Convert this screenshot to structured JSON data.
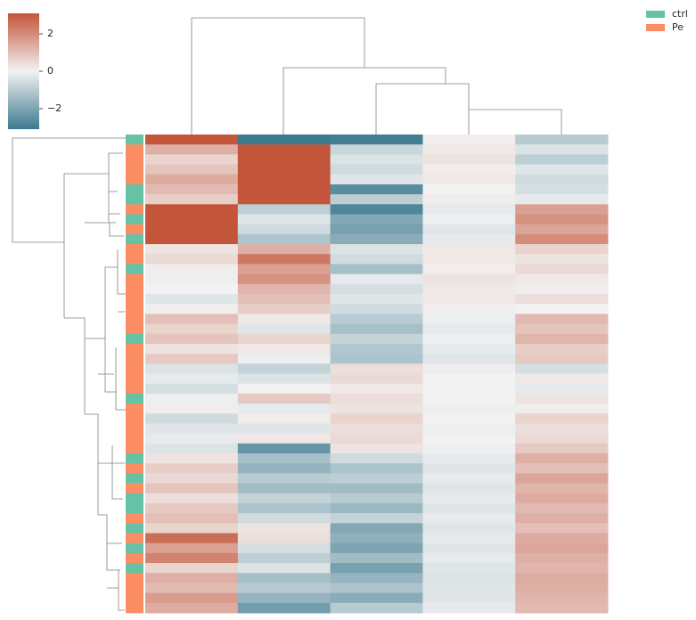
{
  "chart_data": {
    "type": "heatmap",
    "colormap": [
      "#3d7a8f",
      "#f2f2f2",
      "#c3553a"
    ],
    "clim": [
      -3.1,
      3.1
    ],
    "colorbar_ticks": [
      {
        "value": -2,
        "label": "−2"
      },
      0,
      2
    ],
    "legend": [
      {
        "name": "ctrl",
        "color": "#66c2a5"
      },
      {
        "name": "Pe",
        "color": "#fc8d62"
      }
    ],
    "row_group_index": [
      0,
      1,
      1,
      1,
      1,
      0,
      0,
      1,
      0,
      1,
      0,
      1,
      1,
      0,
      1,
      1,
      1,
      1,
      1,
      1,
      0,
      1,
      1,
      1,
      1,
      1,
      0,
      1,
      1,
      1,
      1,
      1,
      0,
      1,
      0,
      1,
      0,
      0,
      1,
      0,
      1,
      0,
      1,
      0,
      1,
      1,
      1,
      1
    ],
    "values": [
      [
        3.2,
        -3.3,
        -3.0,
        0.1,
        -1.0
      ],
      [
        1.3,
        3.2,
        -0.7,
        0.2,
        -0.4
      ],
      [
        0.6,
        3.2,
        -0.4,
        0.3,
        -0.9
      ],
      [
        0.9,
        3.2,
        -0.6,
        0.1,
        -0.3
      ],
      [
        1.4,
        3.2,
        -0.3,
        0.2,
        -0.6
      ],
      [
        1.1,
        3.2,
        -2.6,
        0.0,
        -0.5
      ],
      [
        0.7,
        3.2,
        -0.9,
        0.1,
        -0.2
      ],
      [
        3.2,
        -0.9,
        -2.8,
        -0.2,
        1.6
      ],
      [
        3.2,
        -0.3,
        -1.9,
        -0.1,
        1.9
      ],
      [
        3.2,
        -0.6,
        -2.1,
        -0.3,
        1.5
      ],
      [
        3.2,
        -1.2,
        -1.8,
        -0.2,
        2.0
      ],
      [
        0.3,
        1.3,
        -0.4,
        0.2,
        0.6
      ],
      [
        0.5,
        2.4,
        -0.6,
        0.2,
        0.3
      ],
      [
        0.1,
        1.6,
        -1.3,
        0.1,
        0.5
      ],
      [
        -0.1,
        1.9,
        -0.2,
        0.3,
        0.2
      ],
      [
        0.0,
        1.2,
        -0.5,
        0.2,
        0.1
      ],
      [
        -0.3,
        1.0,
        -0.3,
        0.2,
        0.4
      ],
      [
        0.1,
        0.7,
        -0.6,
        0.1,
        0.0
      ],
      [
        1.0,
        0.2,
        -1.0,
        -0.1,
        1.1
      ],
      [
        0.6,
        -0.3,
        -1.3,
        -0.2,
        0.9
      ],
      [
        0.9,
        0.6,
        -0.8,
        -0.1,
        1.2
      ],
      [
        0.3,
        0.2,
        -1.1,
        -0.2,
        0.7
      ],
      [
        0.8,
        -0.1,
        -1.2,
        -0.3,
        0.8
      ],
      [
        -0.4,
        -0.8,
        0.4,
        0.1,
        -0.5
      ],
      [
        -0.2,
        -0.4,
        0.5,
        0.0,
        0.2
      ],
      [
        -0.5,
        0.0,
        0.2,
        0.0,
        -0.2
      ],
      [
        -0.1,
        0.8,
        0.4,
        0.0,
        0.3
      ],
      [
        0.1,
        -0.2,
        0.3,
        -0.1,
        0.1
      ],
      [
        -0.6,
        0.1,
        0.6,
        0.0,
        0.6
      ],
      [
        -0.3,
        -0.3,
        0.4,
        -0.1,
        0.4
      ],
      [
        -0.2,
        0.2,
        0.5,
        0.0,
        0.5
      ],
      [
        -0.4,
        -2.4,
        0.3,
        -0.1,
        0.8
      ],
      [
        0.3,
        -1.3,
        -0.6,
        -0.2,
        1.3
      ],
      [
        0.7,
        -1.6,
        -1.2,
        -0.3,
        1.0
      ],
      [
        0.5,
        -1.0,
        -0.9,
        -0.2,
        1.5
      ],
      [
        0.9,
        -1.4,
        -1.4,
        -0.3,
        1.2
      ],
      [
        0.4,
        -0.8,
        -1.0,
        -0.2,
        1.4
      ],
      [
        0.8,
        -1.2,
        -1.5,
        -0.3,
        1.1
      ],
      [
        1.0,
        -0.6,
        -0.8,
        -0.2,
        1.3
      ],
      [
        0.6,
        0.3,
        -1.9,
        -0.3,
        1.0
      ],
      [
        2.6,
        0.4,
        -1.7,
        -0.2,
        1.4
      ],
      [
        1.6,
        -0.5,
        -2.0,
        -0.3,
        1.5
      ],
      [
        2.2,
        -0.9,
        -1.4,
        -0.2,
        1.3
      ],
      [
        0.6,
        -0.4,
        -2.1,
        -0.3,
        1.2
      ],
      [
        1.3,
        -1.3,
        -1.6,
        -0.4,
        1.4
      ],
      [
        1.1,
        -1.0,
        -1.2,
        -0.3,
        1.3
      ],
      [
        1.7,
        -1.6,
        -1.8,
        -0.3,
        1.2
      ],
      [
        1.4,
        -2.2,
        -1.0,
        -0.2,
        1.1
      ]
    ]
  }
}
